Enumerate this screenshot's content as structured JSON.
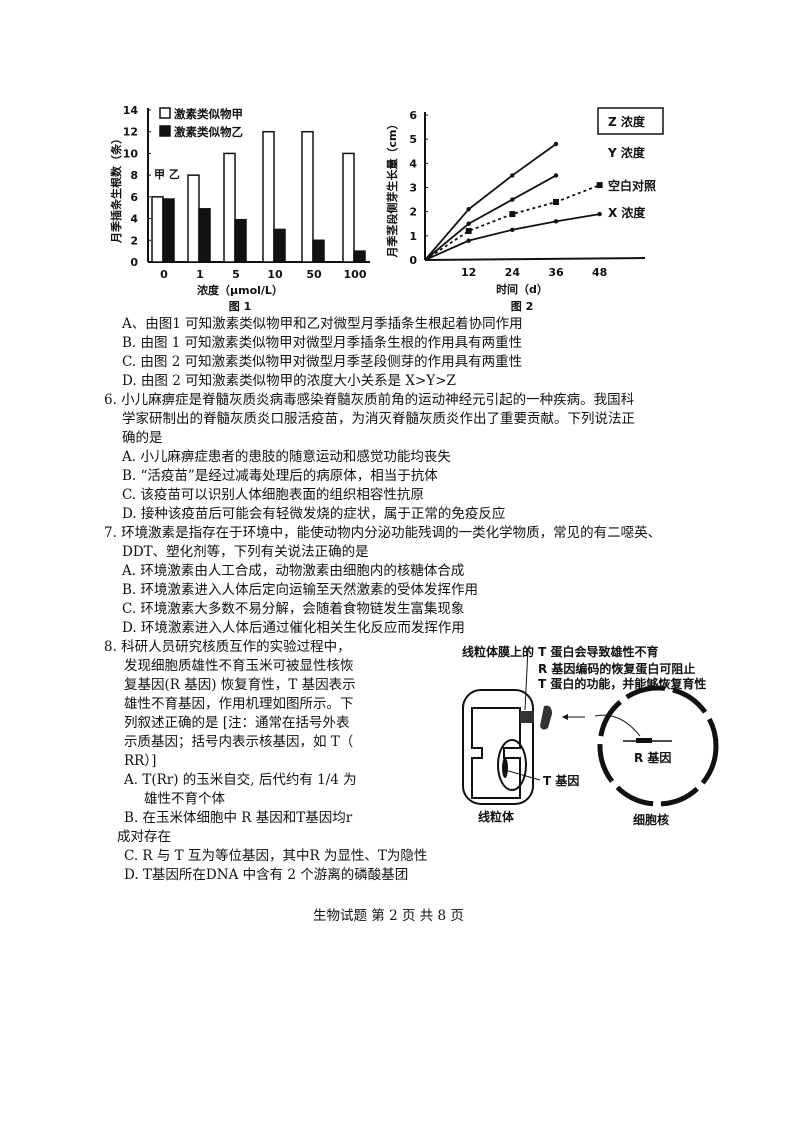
{
  "figure1": {
    "caption": "图 1",
    "chart_data": {
      "type": "bar",
      "categories": [
        "0",
        "1",
        "5",
        "10",
        "50",
        "100"
      ],
      "series": [
        {
          "name": "激素类似物甲",
          "values": [
            6,
            8,
            10,
            12,
            12,
            10
          ],
          "fill": "#ffffff"
        },
        {
          "name": "激素类似物乙",
          "values": [
            5.8,
            4.9,
            3.9,
            3,
            2,
            1
          ],
          "fill": "#111111"
        }
      ],
      "ylabel": "月季插条生根数（条）",
      "xlabel": "浓度（μmol/L）",
      "ylim": [
        0,
        14
      ],
      "yticks": [
        "0",
        "2",
        "4",
        "6",
        "8",
        "10",
        "12",
        "14"
      ],
      "legend": "top-left",
      "annotation": "甲 乙"
    }
  },
  "figure2": {
    "caption": "图 2",
    "chart_data": {
      "type": "line",
      "x": [
        0,
        12,
        24,
        36,
        48
      ],
      "xticks": [
        "12",
        "24",
        "36",
        "48"
      ],
      "series": [
        {
          "name": "Z 浓度",
          "values": [
            0,
            2.1,
            3.5,
            4.8,
            null
          ]
        },
        {
          "name": "Y 浓度",
          "values": [
            0,
            1.5,
            2.5,
            3.5,
            null
          ]
        },
        {
          "name": "空白对照",
          "values": [
            0,
            1.2,
            1.9,
            2.4,
            3.1
          ],
          "dashed": true
        },
        {
          "name": "X 浓度",
          "values": [
            0,
            0.8,
            1.25,
            1.6,
            1.9
          ]
        }
      ],
      "ylabel": "月季茎段侧芽生长量（cm）",
      "xlabel": "时间（d）",
      "ylim": [
        0,
        6
      ],
      "yticks": [
        "0",
        "1",
        "2",
        "3",
        "4",
        "5",
        "6"
      ],
      "legend": "right"
    }
  },
  "q5_options": [
    "A、由图1 可知激素类似物甲和乙对微型月季插条生根起着协同作用",
    "B. 由图 1 可知激素类似物甲对微型月季插条生根的作用具有两重性",
    "C. 由图 2 可知激素类似物甲对微型月季茎段侧芽的作用具有两重性",
    "D. 由图 2 可知激素类似物甲的浓度大小关系是 X>Y>Z"
  ],
  "q6": {
    "stem": [
      "6. 小儿麻痹症是脊髓灰质炎病毒感染脊髓灰质前角的运动神经元引起的一种疾病。我国科",
      "学家研制出的脊髓灰质炎口服活疫苗，为消灭脊髓灰质炎作出了重要贡献。下列说法正",
      "确的是"
    ],
    "options": [
      "A. 小儿麻痹症患者的患肢的随意运动和感觉功能均丧失",
      "B. “活疫苗”是经过减毒处理后的病原体，相当于抗体",
      "C. 该疫苗可以识别人体细胞表面的组织相容性抗原",
      "D. 接种该疫苗后可能会有轻微发烧的症状，属于正常的免疫反应"
    ]
  },
  "q7": {
    "stem": [
      "7. 环境激素是指存在于环境中，能使动物内分泌功能残调的一类化学物质，常见的有二噁英、",
      "DDT、塑化剂等，下列有关说法正确的是"
    ],
    "options": [
      "A. 环境激素由人工合成，动物激素由细胞内的核糖体合成",
      "B. 环境激素进入人体后定向运输至天然激素的受体发挥作用",
      "C. 环境激素大多数不易分解，会随着食物链发生富集现象",
      "D. 环境激素进入人体后通过催化相关生化反应而发挥作用"
    ]
  },
  "q8": {
    "stem": [
      "8. 科研人员研究核质互作的实验过程中，",
      "发现细胞质雄性不育玉米可被显性核恢",
      "复基因(R 基因) 恢复育性，T 基因表示",
      "雄性不育基因，作用机理如图所示。下",
      "列叙述正确的是 [注：通常在括号外表",
      "示质基因；括号内表示核基因，如 T（",
      "RR）]"
    ],
    "options": [
      "A. T(Rr) 的玉米自交, 后代约有 1/4 为",
      "雄性不育个体",
      "B. 在玉米体细胞中 R 基因和T基因均r",
      "成对存在",
      "C. R 与 T 互为等位基因，其中R 为显性、T为隐性",
      "D. T基因所在DNA 中含有 2 个游离的磷酸基团"
    ],
    "diagram": {
      "label_top": "线粒体膜上的 T 蛋白会导致雄性不育",
      "label_r1": "R 基因编码的恢复蛋白可阻止",
      "label_r2": "T 蛋白的功能，并能够恢复育性",
      "label_rgene": "R 基因",
      "label_tgene": "T 基因",
      "label_mito": "线粒体",
      "label_nucleus": "细胞核"
    }
  },
  "footer": "生物试题 第 2 页 共 8 页"
}
